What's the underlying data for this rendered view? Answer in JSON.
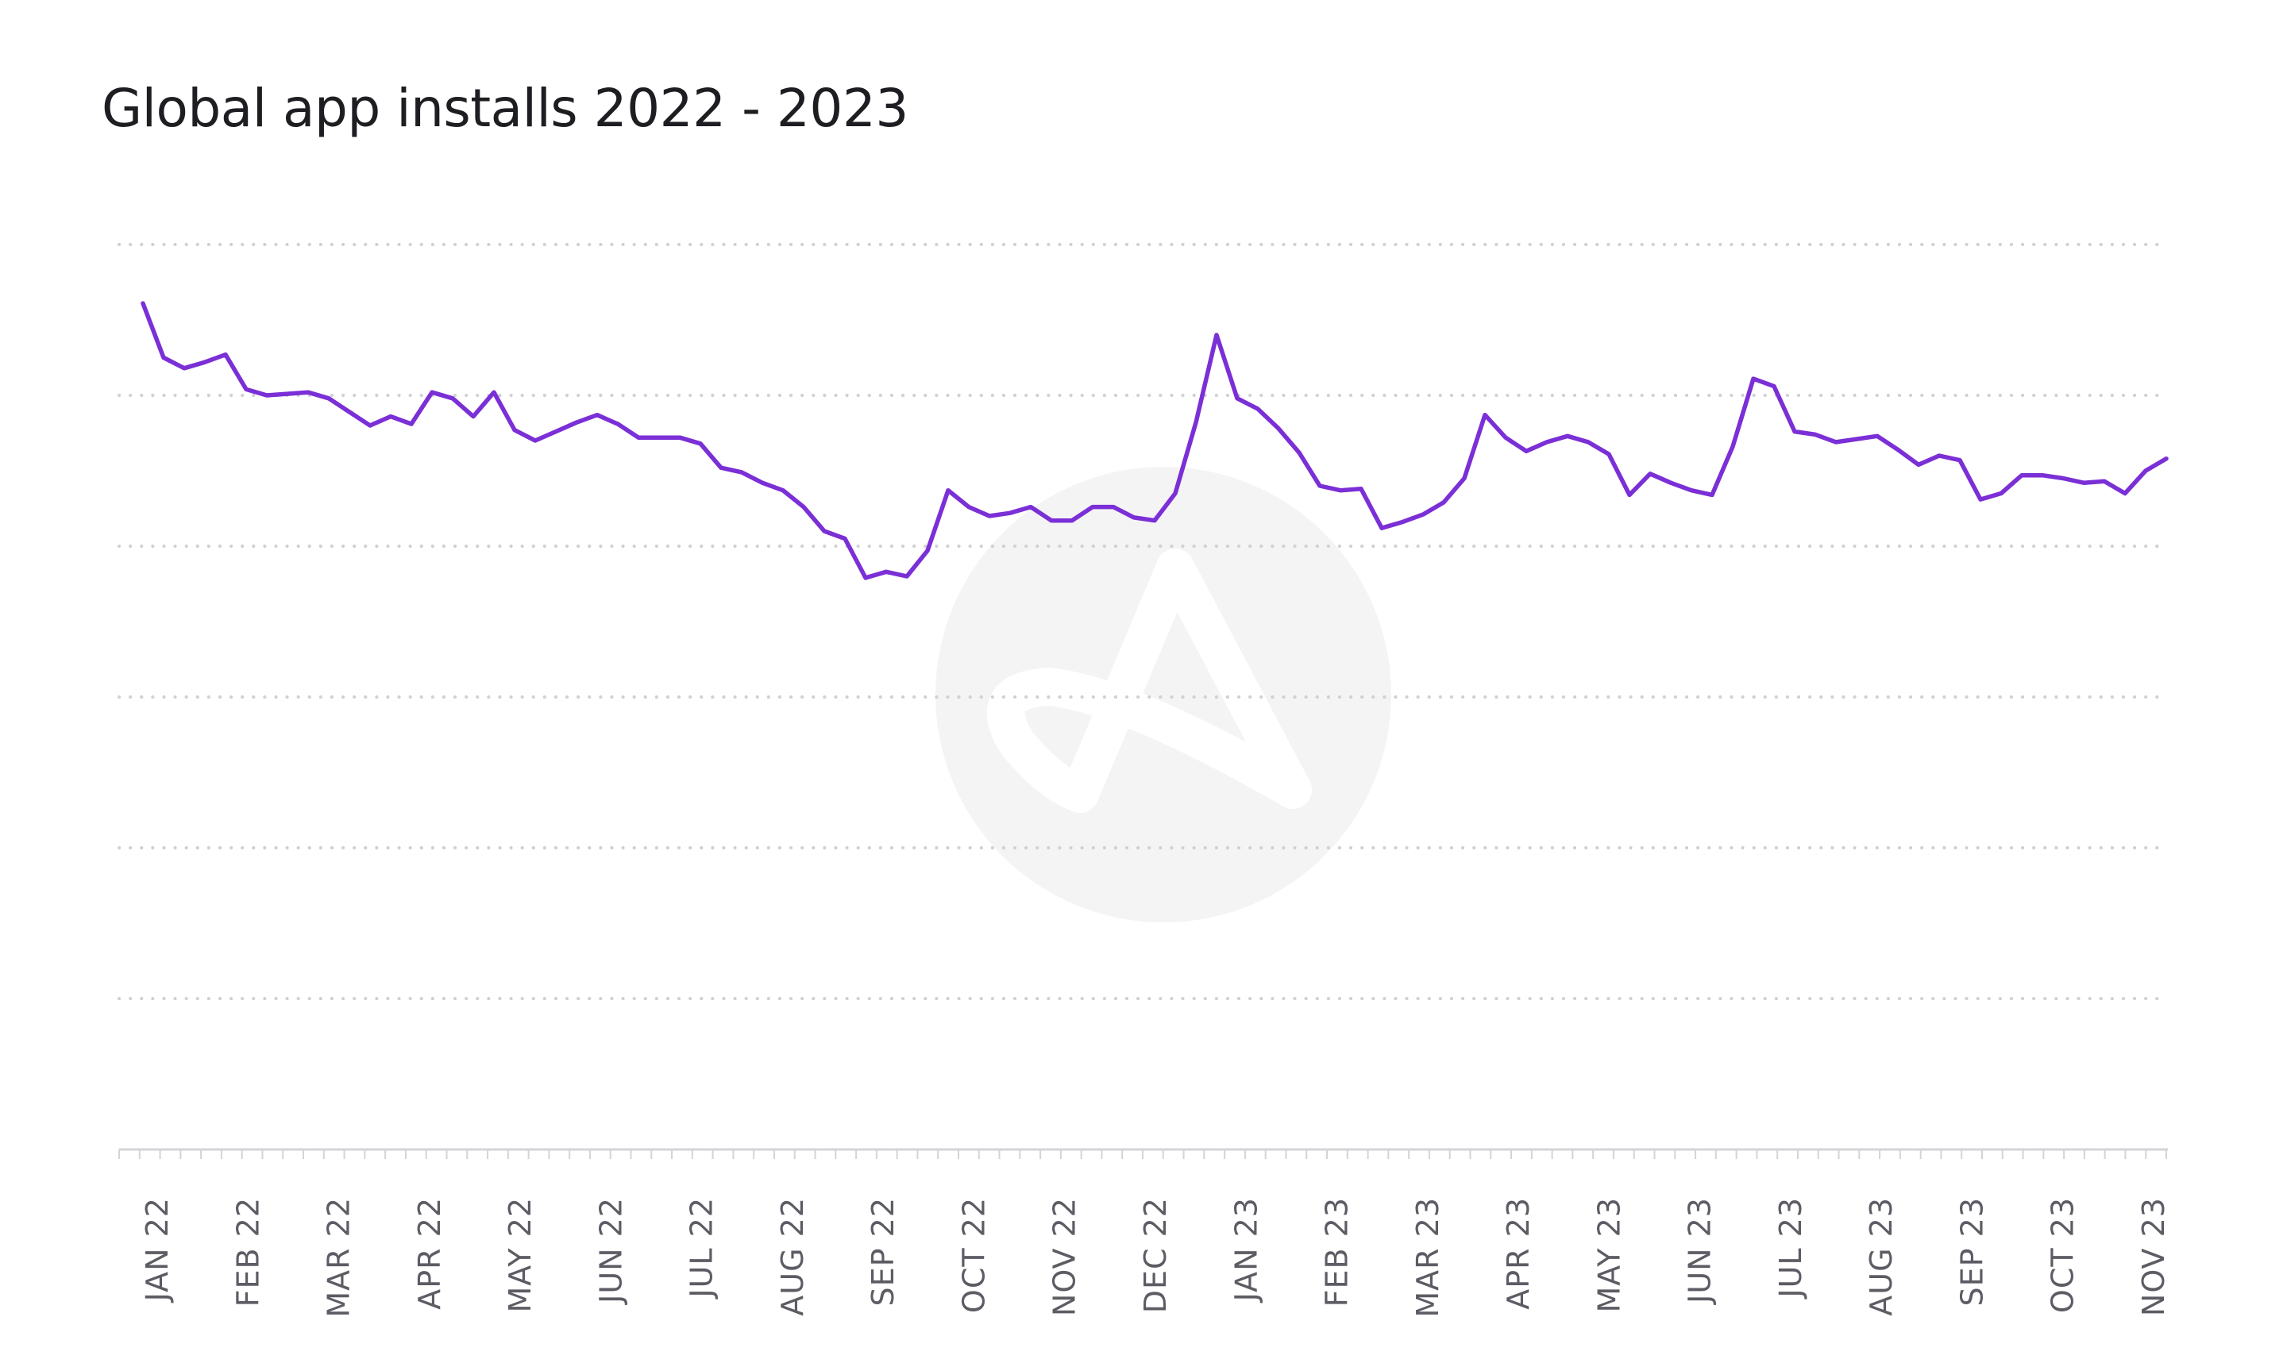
{
  "chart_data": {
    "type": "line",
    "title": "Global app installs 2022 - 2023",
    "xlabel": "",
    "ylabel": "",
    "ylim": [
      0,
      6
    ],
    "grid": true,
    "tick_labels": [
      "JAN 22",
      "FEB 22",
      "MAR 22",
      "APR 22",
      "MAY 22",
      "JUN 22",
      "JUL 22",
      "AUG 22",
      "SEP 22",
      "OCT 22",
      "NOV 22",
      "DEC 22",
      "JAN 23",
      "FEB 23",
      "MAR 23",
      "APR 23",
      "MAY 23",
      "JUN 23",
      "JUL 23",
      "AUG 23",
      "SEP 23",
      "OCT 23",
      "NOV 23"
    ],
    "series": [
      {
        "color": "#7b2fd6",
        "values": [
          5.61,
          5.25,
          5.18,
          5.22,
          5.27,
          5.04,
          5.0,
          5.01,
          5.02,
          4.98,
          4.89,
          4.8,
          4.86,
          4.81,
          5.02,
          4.98,
          4.86,
          5.02,
          4.77,
          4.7,
          4.76,
          4.82,
          4.87,
          4.81,
          4.72,
          4.72,
          4.72,
          4.68,
          4.52,
          4.49,
          4.42,
          4.37,
          4.26,
          4.1,
          4.05,
          3.79,
          3.83,
          3.8,
          3.97,
          4.37,
          4.26,
          4.2,
          4.22,
          4.26,
          4.17,
          4.17,
          4.26,
          4.26,
          4.19,
          4.17,
          4.35,
          4.82,
          5.4,
          4.98,
          4.91,
          4.78,
          4.62,
          4.4,
          4.37,
          4.38,
          4.12,
          4.16,
          4.21,
          4.29,
          4.45,
          4.87,
          4.72,
          4.63,
          4.69,
          4.73,
          4.69,
          4.61,
          4.34,
          4.48,
          4.42,
          4.37,
          4.34,
          4.66,
          5.11,
          5.06,
          4.76,
          4.74,
          4.69,
          4.71,
          4.73,
          4.64,
          4.54,
          4.6,
          4.57,
          4.31,
          4.35,
          4.47,
          4.47,
          4.45,
          4.42,
          4.43,
          4.35,
          4.5,
          4.58
        ]
      }
    ]
  }
}
